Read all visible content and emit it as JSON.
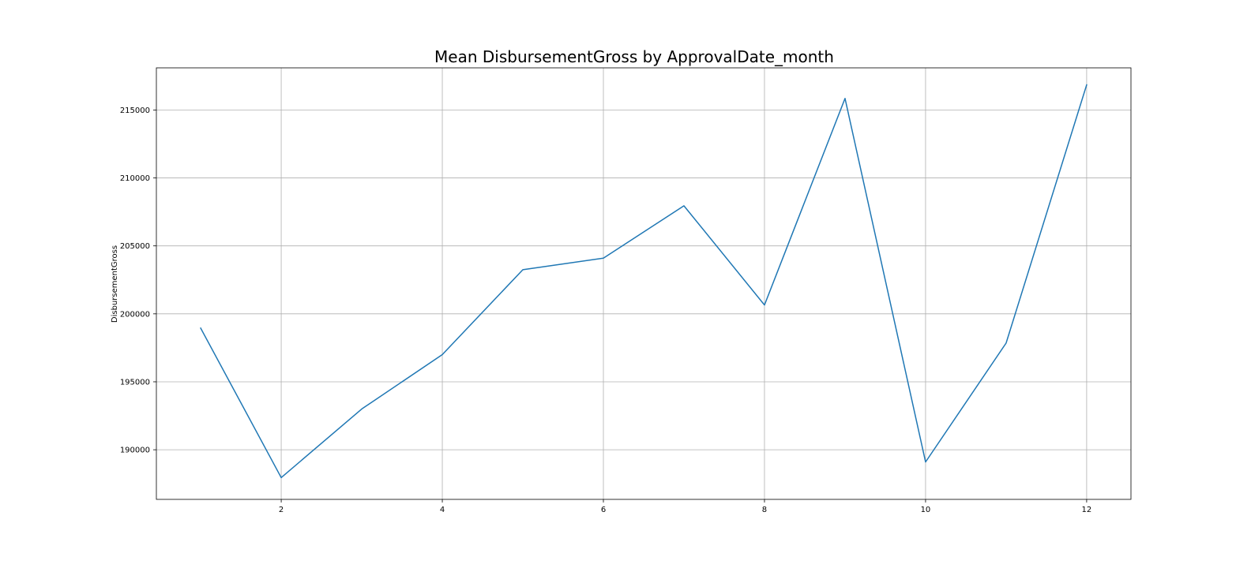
{
  "chart_data": {
    "type": "line",
    "title": "Mean DisbursementGross by ApprovalDate_month",
    "xlabel": "",
    "ylabel": "DisbursementGross",
    "x": [
      1,
      2,
      3,
      4,
      5,
      6,
      7,
      8,
      9,
      10,
      11,
      12
    ],
    "series": [
      {
        "values": [
          198950,
          187950,
          193000,
          197000,
          203250,
          204100,
          207950,
          200650,
          215850,
          189100,
          197850,
          216850
        ],
        "color": "#1f77b4"
      }
    ],
    "xlim": [
      0.45,
      12.55
    ],
    "ylim": [
      186350,
      218100
    ],
    "xticks": [
      2,
      4,
      6,
      8,
      10,
      12
    ],
    "yticks": [
      190000,
      195000,
      200000,
      205000,
      210000,
      215000
    ],
    "grid": true,
    "legend": "none"
  }
}
